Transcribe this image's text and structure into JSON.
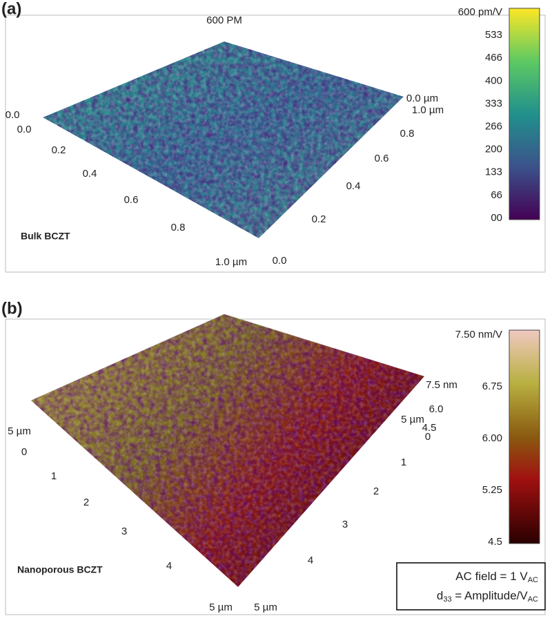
{
  "panel_a": {
    "label": "(a)",
    "title": "600 PM",
    "sample": "Bulk BCZT",
    "colorbar": [
      "600 pm/V",
      "533",
      "466",
      "400",
      "333",
      "266",
      "200",
      "133",
      "66",
      "00"
    ],
    "front_axis": [
      "0.0",
      "0.2",
      "0.4",
      "0.6",
      "0.8",
      "1.0 µm"
    ],
    "side_axis": [
      "0.0",
      "0.2",
      "0.4",
      "0.6",
      "0.8",
      "1.0 µm"
    ],
    "corner_labels": [
      "0.0",
      "0.0 µm"
    ]
  },
  "panel_b": {
    "label": "(b)",
    "sample": "Nanoporous BCZT",
    "colorbar": [
      "7.50 nm/V",
      "6.75",
      "6.00",
      "5.25",
      "4.5"
    ],
    "front_axis": [
      "5 µm",
      "0",
      "1",
      "2",
      "3",
      "4",
      "5 µm"
    ],
    "side_axis": [
      "5 µm",
      "4",
      "3",
      "2",
      "1",
      "0"
    ],
    "z_axis": [
      "7.5 nm",
      "6.0",
      "5 µm",
      "4.5"
    ],
    "note": {
      "line1": "AC field = 1 V",
      "line1_sub": "AC",
      "line2_pre": "d",
      "line2_sub": "33",
      "line2": " = Amplitude/V",
      "line2_sub2": "AC"
    }
  }
}
